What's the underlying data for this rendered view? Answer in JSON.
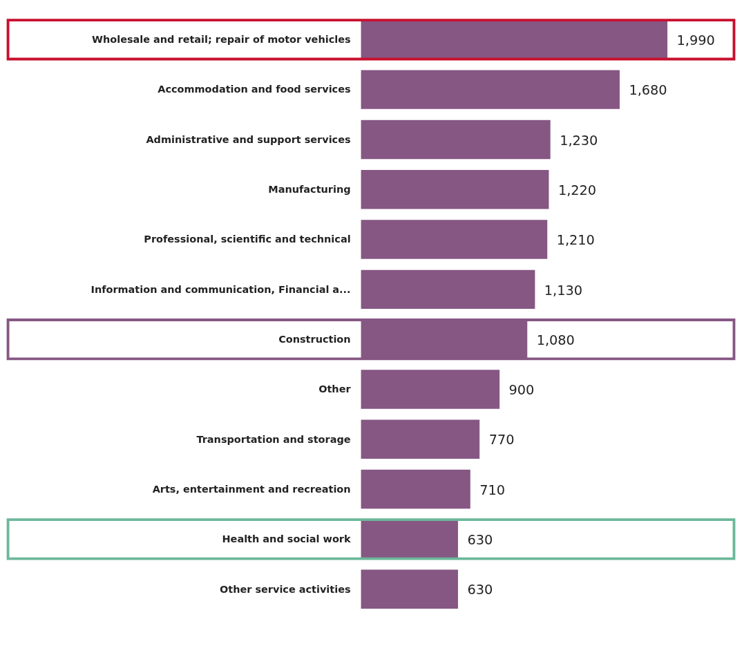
{
  "chart_data": {
    "type": "bar",
    "orientation": "horizontal",
    "categories": [
      "Wholesale and retail; repair of motor vehicles",
      "Accommodation and food services",
      "Administrative and support services",
      "Manufacturing",
      "Professional, scientific and technical",
      "Information and communication, Financial a...",
      "Construction",
      "Other",
      "Transportation and storage",
      "Arts, entertainment and recreation",
      "Health and social work",
      "Other service activities"
    ],
    "values": [
      1990,
      1680,
      1230,
      1220,
      1210,
      1130,
      1080,
      900,
      770,
      710,
      630,
      630
    ],
    "color": "#865783",
    "value_labels": [
      "1,990",
      "1,680",
      "1,230",
      "1,220",
      "1,210",
      "1,130",
      "1,080",
      "900",
      "770",
      "710",
      "630",
      "630"
    ]
  }
}
